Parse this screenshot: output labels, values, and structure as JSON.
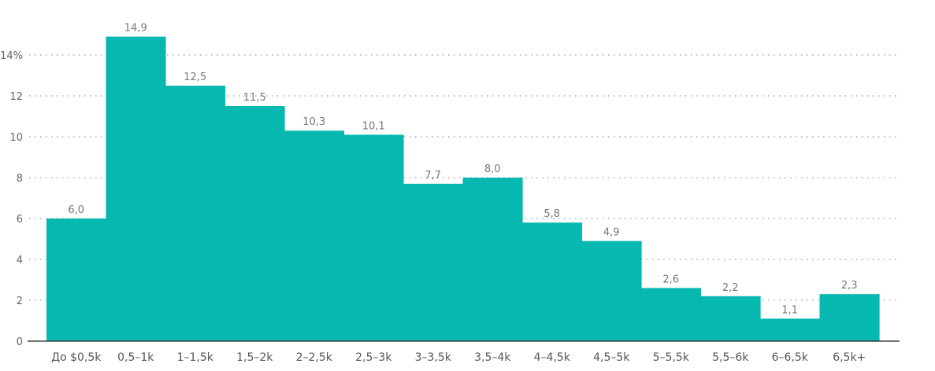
{
  "chart_data": {
    "type": "bar",
    "title": "",
    "xlabel": "",
    "ylabel": "",
    "ylim": [
      0,
      15.5
    ],
    "y_ticks": [
      0,
      2,
      4,
      6,
      8,
      10,
      12,
      14
    ],
    "y_tick_labels": [
      "0",
      "2",
      "4",
      "6",
      "8",
      "10",
      "12",
      "14%"
    ],
    "grid": true,
    "bar_color": "#07b8b0",
    "categories": [
      "До $0,5k",
      "0,5–1k",
      "1–1,5k",
      "1,5–2k",
      "2–2,5k",
      "2,5–3k",
      "3–3,5k",
      "3,5–4k",
      "4–4,5k",
      "4,5–5k",
      "5–5,5k",
      "5,5–6k",
      "6–6,5k",
      "6,5k+"
    ],
    "values": [
      6.0,
      14.9,
      12.5,
      11.5,
      10.3,
      10.1,
      7.7,
      8.0,
      5.8,
      4.9,
      2.6,
      2.2,
      1.1,
      2.3
    ],
    "value_labels": [
      "6,0",
      "14,9",
      "12,5",
      "11,5",
      "10,3",
      "10,1",
      "7,7",
      "8,0",
      "5,8",
      "4,9",
      "2,6",
      "2,2",
      "1,1",
      "2,3"
    ]
  }
}
